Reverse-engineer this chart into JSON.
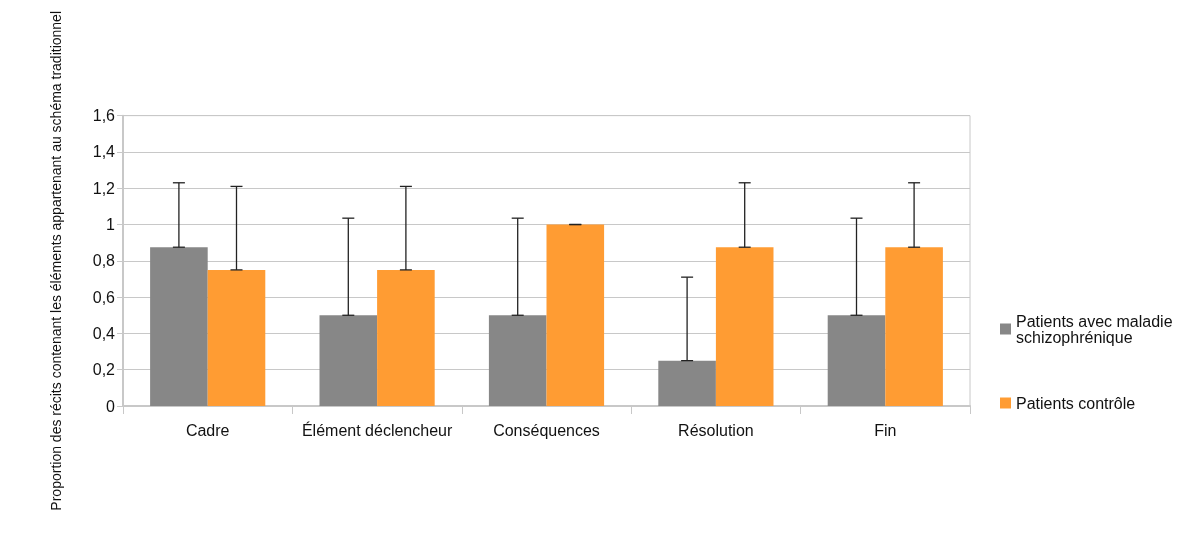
{
  "chart_data": {
    "type": "bar",
    "ylabel": "Proportion des récits contenant les éléments appartenant au schéma traditionnel",
    "categories": [
      "Cadre",
      "Élément déclencheur",
      "Conséquences",
      "Résolution",
      "Fin"
    ],
    "series": [
      {
        "name": "Patients avec maladie schizophrénique",
        "color": "#878787",
        "values": [
          0.875,
          0.5,
          0.5,
          0.25,
          0.5
        ],
        "errors": [
          [
            0.875,
            1.23
          ],
          [
            0.5,
            1.035
          ],
          [
            0.5,
            1.035
          ],
          [
            0.25,
            0.71
          ],
          [
            0.5,
            1.035
          ]
        ]
      },
      {
        "name": "Patients contrôle",
        "color": "#ff9c33",
        "values": [
          0.75,
          0.75,
          1,
          0.875,
          0.875
        ],
        "errors": [
          [
            0.75,
            1.21
          ],
          [
            0.75,
            1.21
          ],
          [
            1,
            1
          ],
          [
            0.875,
            1.23
          ],
          [
            0.875,
            1.23
          ]
        ]
      }
    ],
    "ylim": [
      0,
      1.6
    ],
    "yticks": [
      0,
      {
        "value": 0.2,
        "label": "0,2"
      },
      {
        "value": 0.4,
        "label": "0,4"
      },
      {
        "value": 0.6,
        "label": "0,6"
      },
      {
        "value": 0.8,
        "label": "0,8"
      },
      1,
      {
        "value": 1.2,
        "label": "1,2"
      },
      {
        "value": 1.4,
        "label": "1,4"
      },
      {
        "value": 1.6,
        "label": "1,6"
      }
    ],
    "grid": "y",
    "legend": "right"
  }
}
